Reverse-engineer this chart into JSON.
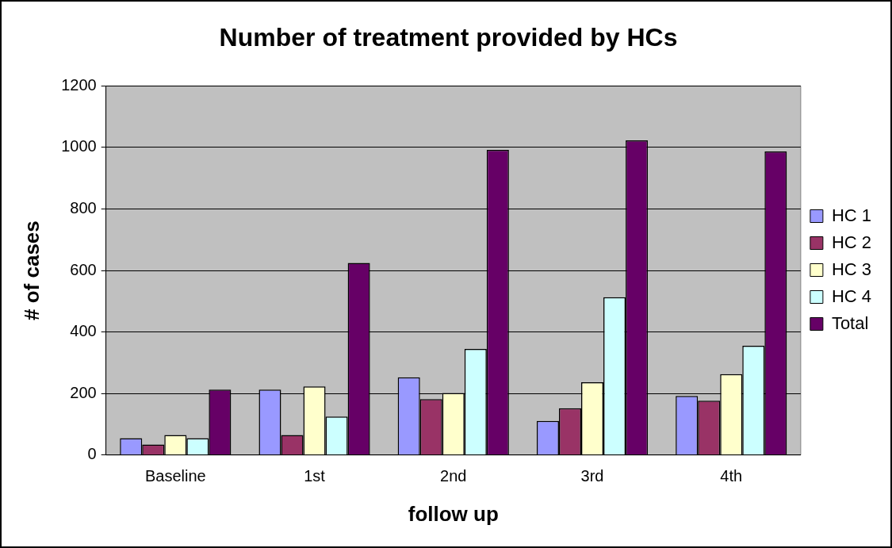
{
  "chart_data": {
    "type": "bar",
    "title": "Number of treatment provided by HCs",
    "xlabel": "follow up",
    "ylabel": "# of cases",
    "categories": [
      "Baseline",
      "1st",
      "2nd",
      "3rd",
      "4th"
    ],
    "series": [
      {
        "name": "HC 1",
        "color": "#9999ff",
        "values": [
          55,
          213,
          253,
          111,
          192
        ]
      },
      {
        "name": "HC 2",
        "color": "#993366",
        "values": [
          34,
          65,
          182,
          152,
          177
        ]
      },
      {
        "name": "HC 3",
        "color": "#ffffcc",
        "values": [
          65,
          223,
          202,
          237,
          263
        ]
      },
      {
        "name": "HC 4",
        "color": "#ccffff",
        "values": [
          55,
          125,
          345,
          513,
          355
        ]
      },
      {
        "name": "Total",
        "color": "#660066",
        "values": [
          213,
          625,
          992,
          1023,
          987
        ]
      }
    ],
    "ylim": [
      0,
      1200
    ],
    "yticks": [
      0,
      200,
      400,
      600,
      800,
      1000,
      1200
    ],
    "grid": "y",
    "legend": "right"
  }
}
